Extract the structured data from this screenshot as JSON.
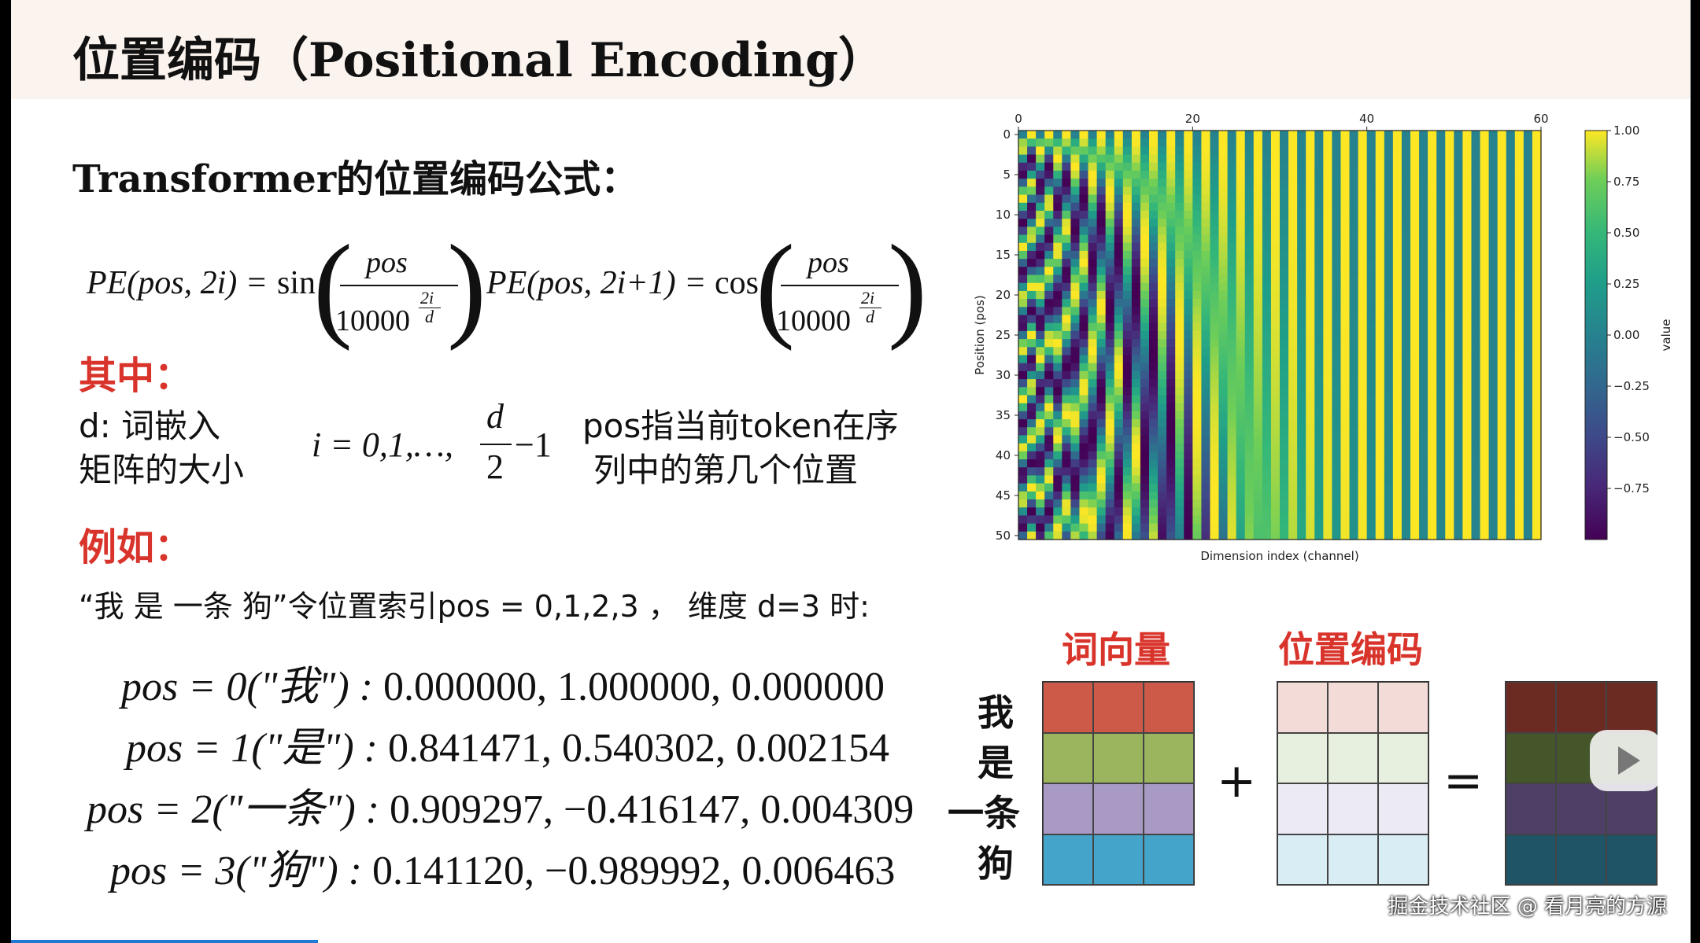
{
  "title": "位置编码（Positional Encoding）",
  "subtitle": "Transformer的位置编码公式：",
  "formula1": {
    "lhs": "PE(pos, 2i) =",
    "fn": "sin",
    "num": "pos",
    "den": "10000",
    "exp_num": "2i",
    "exp_den": "d"
  },
  "formula2": {
    "lhs": "PE(pos, 2i+1) =",
    "fn": "cos",
    "num": "pos",
    "den": "10000",
    "exp_num": "2i",
    "exp_den": "d"
  },
  "where_label": "其中：",
  "def_d": {
    "line1": "d:  词嵌入",
    "line2": "矩阵的大小"
  },
  "def_i": {
    "lhs": "i = 0,1,…,",
    "num": "d",
    "den": "2",
    "tail": "−1"
  },
  "def_pos": {
    "line1": "pos指当前token在序",
    "line2": "列中的第几个位置"
  },
  "example_label": "例如：",
  "example_sentence": "“我 是 一条 狗”令位置索引pos = 0,1,2,3 ，  维度 d=3 时:",
  "examples": [
    {
      "lhs": "pos = 0(\"我\") :",
      "values": "0.000000, 1.000000, 0.000000"
    },
    {
      "lhs": "pos = 1(\"是\") :",
      "values": "0.841471, 0.540302, 0.002154"
    },
    {
      "lhs": "pos = 2(\"一条\") :",
      "values": "0.909297, −0.416147, 0.004309"
    },
    {
      "lhs": "pos = 3(\"狗\") :",
      "values": "0.141120, −0.989992, 0.006463"
    }
  ],
  "chart_data": {
    "type": "heatmap",
    "xlabel": "Dimension index (channel)",
    "ylabel": "Position (pos)",
    "colorbar_label": "value",
    "x_ticks": [
      0,
      20,
      40,
      60
    ],
    "y_ticks": [
      0,
      5,
      10,
      15,
      20,
      25,
      30,
      35,
      40,
      45,
      50
    ],
    "colorbar_ticks": [
      "1.00",
      "0.75",
      "0.50",
      "0.25",
      "0.00",
      "−0.25",
      "−0.50",
      "−0.75"
    ],
    "xlim": [
      0,
      60
    ],
    "ylim": [
      0,
      50
    ],
    "vlim": [
      -1,
      1
    ],
    "colormap": "viridis"
  },
  "matrix": {
    "word_vec_label": "词向量",
    "pos_enc_label": "位置编码",
    "rows": [
      "我",
      "是",
      "一条",
      "狗"
    ],
    "plus": "+",
    "equals": "=",
    "word_colors": [
      "#cd5a48",
      "#9ab55e",
      "#a89ac4",
      "#45a4c9"
    ],
    "pos_colors": [
      "#f3dcd8",
      "#e7f0de",
      "#ecebf5",
      "#d9edf5"
    ],
    "result_colors": [
      "#6b2a22",
      "#44562a",
      "#4e3f66",
      "#1f5366"
    ]
  },
  "watermark": "掘金技术社区 @ 看月亮的方源"
}
